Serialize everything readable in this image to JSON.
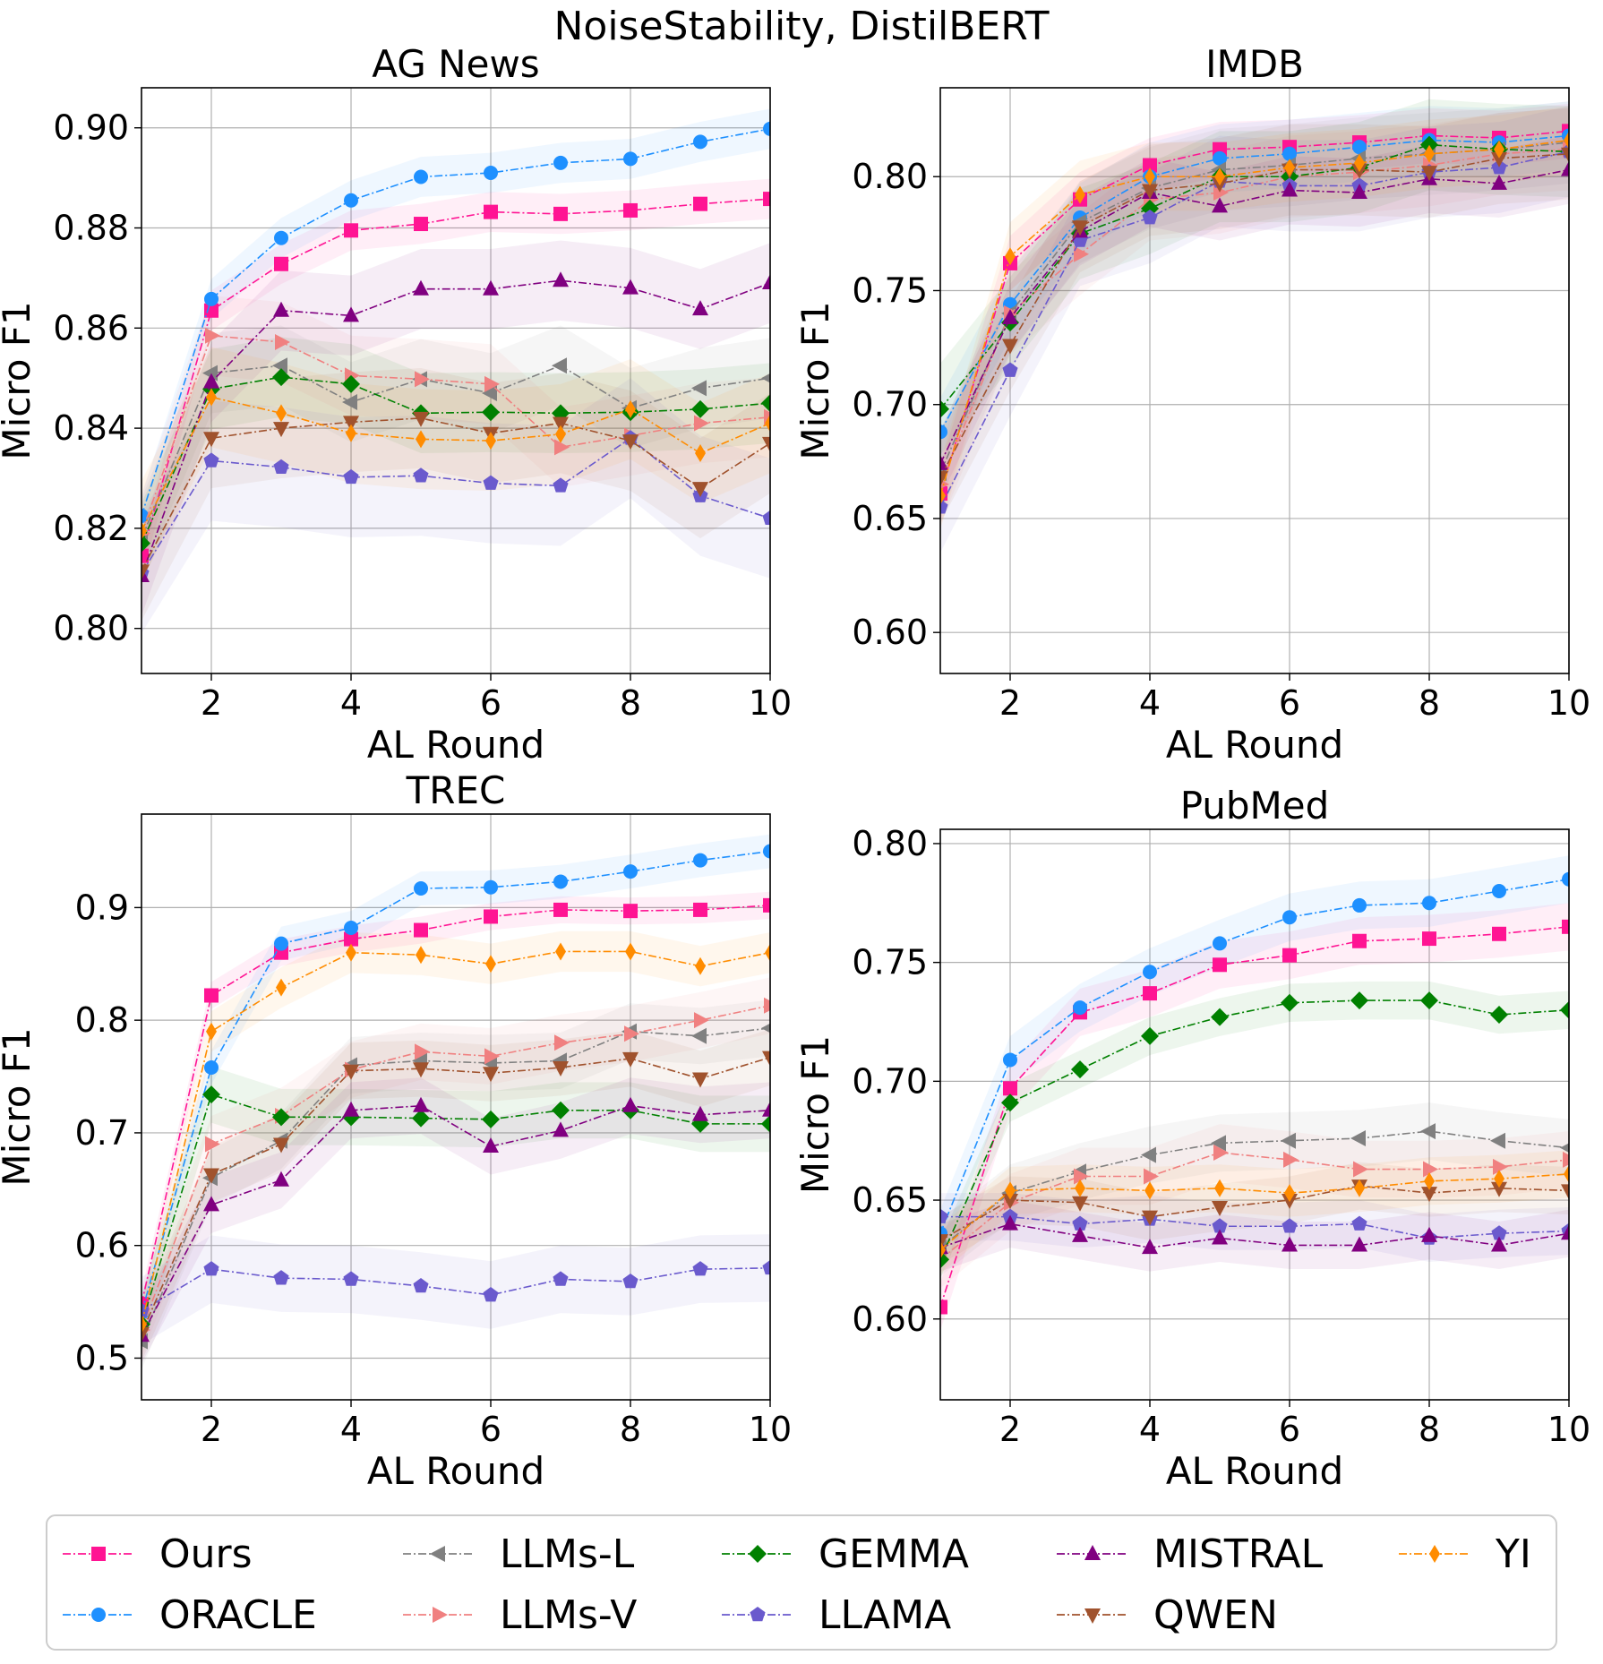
{
  "suptitle": "NoiseStability, DistilBERT",
  "series_meta": [
    {
      "name": "Ours",
      "color": "#ff1493",
      "marker": "square"
    },
    {
      "name": "ORACLE",
      "color": "#1e90ff",
      "marker": "circle"
    },
    {
      "name": "LLMs-L",
      "color": "#808080",
      "marker": "triangle-left"
    },
    {
      "name": "LLMs-V",
      "color": "#f08080",
      "marker": "triangle-right"
    },
    {
      "name": "GEMMA",
      "color": "#008000",
      "marker": "diamond"
    },
    {
      "name": "LLAMA",
      "color": "#6a5acd",
      "marker": "pentagon"
    },
    {
      "name": "MISTRAL",
      "color": "#800080",
      "marker": "triangle-up"
    },
    {
      "name": "QWEN",
      "color": "#a0522d",
      "marker": "triangle-down"
    },
    {
      "name": "YI",
      "color": "#ff8c00",
      "marker": "thin-diamond"
    }
  ],
  "chart_data": [
    {
      "type": "line",
      "title": "AG News",
      "xlabel": "AL Round",
      "ylabel": "Micro F1",
      "xlim": [
        1,
        10
      ],
      "ylim": [
        0.791,
        0.908
      ],
      "xticks": [
        2,
        4,
        6,
        8,
        10
      ],
      "yticks": [
        0.8,
        0.82,
        0.84,
        0.86,
        0.88,
        0.9
      ],
      "ytick_labels": [
        "0.80",
        "0.82",
        "0.84",
        "0.86",
        "0.88",
        "0.90"
      ],
      "x": [
        1,
        2,
        3,
        4,
        5,
        6,
        7,
        8,
        9,
        10
      ],
      "series": [
        {
          "name": "Ours",
          "values": [
            0.8145,
            0.8635,
            0.8728,
            0.8795,
            0.8808,
            0.8832,
            0.8828,
            0.8835,
            0.8848,
            0.8858
          ],
          "band": 0.004
        },
        {
          "name": "ORACLE",
          "values": [
            0.8225,
            0.8658,
            0.878,
            0.8855,
            0.8902,
            0.891,
            0.893,
            0.8938,
            0.8972,
            0.8998
          ],
          "band": 0.004
        },
        {
          "name": "LLMs-L",
          "values": [
            0.818,
            0.851,
            0.8525,
            0.8452,
            0.8498,
            0.847,
            0.8525,
            0.844,
            0.848,
            0.85
          ],
          "band": 0.008
        },
        {
          "name": "LLMs-V",
          "values": [
            0.819,
            0.8585,
            0.8572,
            0.8505,
            0.8498,
            0.8488,
            0.8362,
            0.8385,
            0.841,
            0.8422
          ],
          "band": 0.008
        },
        {
          "name": "GEMMA",
          "values": [
            0.817,
            0.8478,
            0.8502,
            0.8488,
            0.843,
            0.8432,
            0.843,
            0.8432,
            0.8438,
            0.845
          ],
          "band": 0.008
        },
        {
          "name": "LLAMA",
          "values": [
            0.811,
            0.8335,
            0.8322,
            0.8302,
            0.8305,
            0.829,
            0.8285,
            0.838,
            0.8265,
            0.822
          ],
          "band": 0.012
        },
        {
          "name": "MISTRAL",
          "values": [
            0.8105,
            0.8492,
            0.8635,
            0.8625,
            0.8678,
            0.8678,
            0.8695,
            0.868,
            0.8638,
            0.869
          ],
          "band": 0.008
        },
        {
          "name": "QWEN",
          "values": [
            0.8115,
            0.838,
            0.84,
            0.8412,
            0.842,
            0.839,
            0.841,
            0.8375,
            0.828,
            0.837
          ],
          "band": 0.01
        },
        {
          "name": "YI",
          "values": [
            0.8195,
            0.8462,
            0.843,
            0.839,
            0.8378,
            0.8375,
            0.8388,
            0.8438,
            0.835,
            0.841
          ],
          "band": 0.01
        }
      ]
    },
    {
      "type": "line",
      "title": "IMDB",
      "xlabel": "AL Round",
      "ylabel": "Micro F1",
      "xlim": [
        1,
        10
      ],
      "ylim": [
        0.582,
        0.839
      ],
      "xticks": [
        2,
        4,
        6,
        8,
        10
      ],
      "yticks": [
        0.6,
        0.65,
        0.7,
        0.75,
        0.8
      ],
      "ytick_labels": [
        "0.60",
        "0.65",
        "0.70",
        "0.75",
        "0.80"
      ],
      "x": [
        1,
        2,
        3,
        4,
        5,
        6,
        7,
        8,
        9,
        10
      ],
      "series": [
        {
          "name": "Ours",
          "values": [
            0.661,
            0.762,
            0.79,
            0.805,
            0.812,
            0.813,
            0.815,
            0.818,
            0.817,
            0.82
          ],
          "band": 0.012
        },
        {
          "name": "ORACLE",
          "values": [
            0.688,
            0.744,
            0.782,
            0.8,
            0.808,
            0.81,
            0.813,
            0.816,
            0.815,
            0.818
          ],
          "band": 0.015
        },
        {
          "name": "LLMs-L",
          "values": [
            0.67,
            0.74,
            0.78,
            0.795,
            0.803,
            0.805,
            0.808,
            0.81,
            0.812,
            0.815
          ],
          "band": 0.018
        },
        {
          "name": "LLMs-V",
          "values": [
            0.665,
            0.74,
            0.766,
            0.79,
            0.793,
            0.8,
            0.802,
            0.805,
            0.81,
            0.812
          ],
          "band": 0.018
        },
        {
          "name": "GEMMA",
          "values": [
            0.698,
            0.736,
            0.775,
            0.786,
            0.8,
            0.8,
            0.804,
            0.814,
            0.812,
            0.811
          ],
          "band": 0.02
        },
        {
          "name": "LLAMA",
          "values": [
            0.655,
            0.715,
            0.772,
            0.782,
            0.798,
            0.796,
            0.796,
            0.802,
            0.804,
            0.811
          ],
          "band": 0.02
        },
        {
          "name": "MISTRAL",
          "values": [
            0.674,
            0.738,
            0.776,
            0.793,
            0.787,
            0.794,
            0.793,
            0.799,
            0.797,
            0.803
          ],
          "band": 0.015
        },
        {
          "name": "QWEN",
          "values": [
            0.668,
            0.726,
            0.778,
            0.794,
            0.797,
            0.803,
            0.803,
            0.802,
            0.808,
            0.81
          ],
          "band": 0.02
        },
        {
          "name": "YI",
          "values": [
            0.66,
            0.765,
            0.792,
            0.8,
            0.8,
            0.804,
            0.806,
            0.81,
            0.812,
            0.816
          ],
          "band": 0.015
        }
      ]
    },
    {
      "type": "line",
      "title": "TREC",
      "xlabel": "AL Round",
      "ylabel": "Micro F1",
      "xlim": [
        1,
        10
      ],
      "ylim": [
        0.463,
        0.983
      ],
      "xticks": [
        2,
        4,
        6,
        8,
        10
      ],
      "yticks": [
        0.5,
        0.6,
        0.7,
        0.8,
        0.9
      ],
      "ytick_labels": [
        "0.5",
        "0.6",
        "0.7",
        "0.8",
        "0.9"
      ],
      "x": [
        1,
        2,
        3,
        4,
        5,
        6,
        7,
        8,
        9,
        10
      ],
      "series": [
        {
          "name": "Ours",
          "values": [
            0.548,
            0.822,
            0.86,
            0.872,
            0.88,
            0.892,
            0.898,
            0.897,
            0.898,
            0.902
          ],
          "band": 0.012
        },
        {
          "name": "ORACLE",
          "values": [
            0.54,
            0.758,
            0.868,
            0.882,
            0.917,
            0.918,
            0.923,
            0.932,
            0.942,
            0.95
          ],
          "band": 0.015
        },
        {
          "name": "LLMs-L",
          "values": [
            0.515,
            0.66,
            0.693,
            0.76,
            0.764,
            0.762,
            0.764,
            0.79,
            0.786,
            0.793
          ],
          "band": 0.025
        },
        {
          "name": "LLMs-V",
          "values": [
            0.525,
            0.69,
            0.715,
            0.756,
            0.772,
            0.768,
            0.78,
            0.788,
            0.8,
            0.813
          ],
          "band": 0.025
        },
        {
          "name": "GEMMA",
          "values": [
            0.53,
            0.734,
            0.714,
            0.714,
            0.713,
            0.712,
            0.72,
            0.72,
            0.708,
            0.708
          ],
          "band": 0.025
        },
        {
          "name": "LLAMA",
          "values": [
            0.542,
            0.579,
            0.571,
            0.57,
            0.564,
            0.556,
            0.57,
            0.568,
            0.579,
            0.58
          ],
          "band": 0.03
        },
        {
          "name": "MISTRAL",
          "values": [
            0.52,
            0.636,
            0.658,
            0.72,
            0.724,
            0.688,
            0.702,
            0.724,
            0.716,
            0.72
          ],
          "band": 0.025
        },
        {
          "name": "QWEN",
          "values": [
            0.522,
            0.663,
            0.69,
            0.755,
            0.757,
            0.753,
            0.758,
            0.766,
            0.748,
            0.767
          ],
          "band": 0.025
        },
        {
          "name": "YI",
          "values": [
            0.53,
            0.79,
            0.829,
            0.86,
            0.858,
            0.85,
            0.861,
            0.861,
            0.848,
            0.86
          ],
          "band": 0.018
        }
      ]
    },
    {
      "type": "line",
      "title": "PubMed",
      "xlabel": "AL Round",
      "ylabel": "Micro F1",
      "xlim": [
        1,
        10
      ],
      "ylim": [
        0.566,
        0.806
      ],
      "xticks": [
        2,
        4,
        6,
        8,
        10
      ],
      "yticks": [
        0.6,
        0.65,
        0.7,
        0.75,
        0.8
      ],
      "ytick_labels": [
        "0.60",
        "0.65",
        "0.70",
        "0.75",
        "0.80"
      ],
      "x": [
        1,
        2,
        3,
        4,
        5,
        6,
        7,
        8,
        9,
        10
      ],
      "series": [
        {
          "name": "Ours",
          "values": [
            0.605,
            0.697,
            0.729,
            0.737,
            0.749,
            0.753,
            0.759,
            0.76,
            0.762,
            0.765
          ],
          "band": 0.01
        },
        {
          "name": "ORACLE",
          "values": [
            0.636,
            0.709,
            0.731,
            0.746,
            0.758,
            0.769,
            0.774,
            0.775,
            0.78,
            0.785
          ],
          "band": 0.01
        },
        {
          "name": "LLMs-L",
          "values": [
            0.63,
            0.653,
            0.662,
            0.669,
            0.674,
            0.675,
            0.676,
            0.679,
            0.675,
            0.672
          ],
          "band": 0.012
        },
        {
          "name": "LLMs-V",
          "values": [
            0.625,
            0.649,
            0.66,
            0.66,
            0.67,
            0.667,
            0.663,
            0.663,
            0.664,
            0.667
          ],
          "band": 0.012
        },
        {
          "name": "GEMMA",
          "values": [
            0.625,
            0.691,
            0.705,
            0.719,
            0.727,
            0.733,
            0.734,
            0.734,
            0.728,
            0.73
          ],
          "band": 0.008
        },
        {
          "name": "LLAMA",
          "values": [
            0.643,
            0.643,
            0.64,
            0.642,
            0.639,
            0.639,
            0.64,
            0.634,
            0.636,
            0.637
          ],
          "band": 0.01
        },
        {
          "name": "MISTRAL",
          "values": [
            0.63,
            0.64,
            0.635,
            0.63,
            0.634,
            0.631,
            0.631,
            0.635,
            0.631,
            0.636
          ],
          "band": 0.01
        },
        {
          "name": "QWEN",
          "values": [
            0.633,
            0.65,
            0.649,
            0.643,
            0.647,
            0.65,
            0.656,
            0.653,
            0.655,
            0.654
          ],
          "band": 0.01
        },
        {
          "name": "YI",
          "values": [
            0.629,
            0.654,
            0.655,
            0.654,
            0.655,
            0.653,
            0.655,
            0.658,
            0.659,
            0.661
          ],
          "band": 0.01
        }
      ]
    }
  ]
}
